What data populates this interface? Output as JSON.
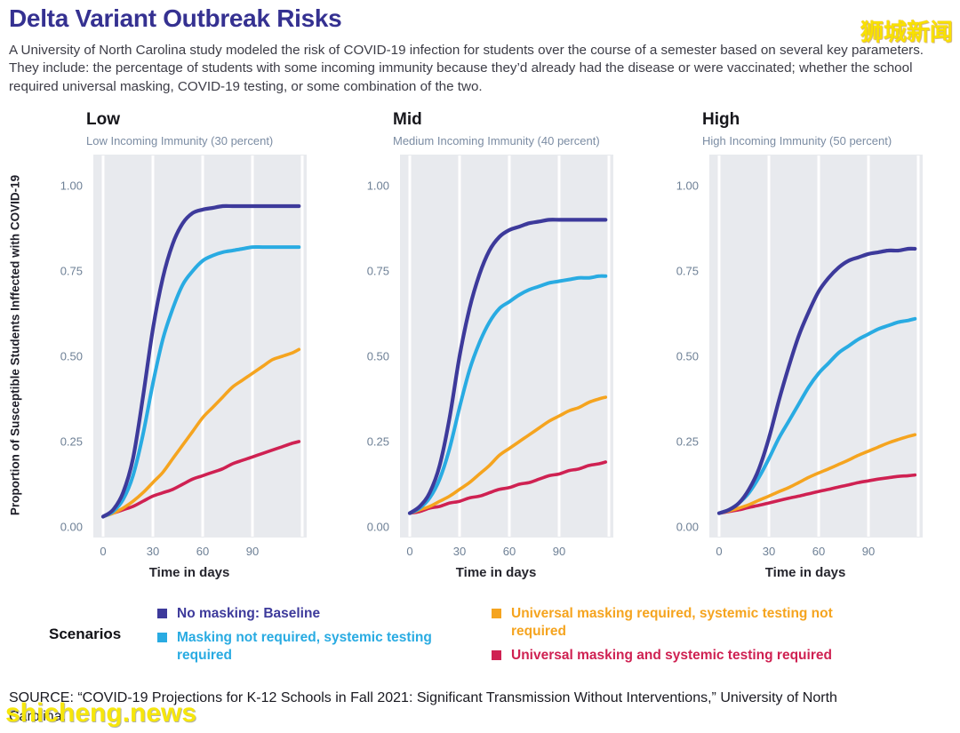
{
  "watermarks": {
    "top": "狮城新闻",
    "bottom": "shicheng.news"
  },
  "header": {
    "title": "Delta Variant Outbreak Risks",
    "description": "A University of North Carolina study modeled the risk of COVID-19 infection for students over the course of a semester based on several key parameters. They include: the percentage of students with some incoming immunity because they’d already had the disease or were vaccinated; whether the school required universal masking, COVID-19 testing, or some combination of the two."
  },
  "colors": {
    "title": "#353191",
    "navy": "#3d3a9b",
    "cyan": "#29abe2",
    "orange": "#f5a41f",
    "red": "#cf2152",
    "plot_bg": "#e8eaee",
    "grid": "#ffffff",
    "tick": "#6e8096",
    "subtitle": "#7b8ca3",
    "watermark": "#f8e100"
  },
  "chart_data": {
    "type": "line",
    "ylabel": "Proportion of Susceptible Students Inffected with COVID-19",
    "xlabel": "Time in days",
    "x_ticks": [
      0,
      30,
      60,
      90
    ],
    "grid_days": [
      0,
      30,
      60,
      90,
      120
    ],
    "y_ticks": [
      "0.00",
      "0.25",
      "0.50",
      "0.75",
      "1.00"
    ],
    "y_tick_values": [
      0,
      0.25,
      0.5,
      0.75,
      1
    ],
    "xlim": [
      -6,
      123
    ],
    "ylim": [
      0,
      1
    ],
    "legend_position": "bottom",
    "grid": "vertical-only",
    "x": [
      0,
      6,
      12,
      18,
      24,
      30,
      36,
      42,
      48,
      54,
      60,
      66,
      72,
      78,
      84,
      90,
      96,
      102,
      108,
      114,
      118
    ],
    "panels": [
      {
        "heading": "Low",
        "subtitle": "Low Incoming Immunity (30 percent)",
        "series": [
          {
            "name": "No masking: Baseline",
            "color": "navy",
            "values": [
              0.03,
              0.05,
              0.1,
              0.2,
              0.38,
              0.58,
              0.73,
              0.83,
              0.89,
              0.92,
              0.93,
              0.935,
              0.94,
              0.94,
              0.94,
              0.94,
              0.94,
              0.94,
              0.94,
              0.94,
              0.94
            ]
          },
          {
            "name": "Masking not required, systemic testing required",
            "color": "cyan",
            "values": [
              0.03,
              0.045,
              0.08,
              0.15,
              0.27,
              0.42,
              0.55,
              0.64,
              0.71,
              0.75,
              0.78,
              0.795,
              0.805,
              0.81,
              0.815,
              0.82,
              0.82,
              0.82,
              0.82,
              0.82,
              0.82
            ]
          },
          {
            "name": "Universal masking required, systemic testing not required",
            "color": "orange",
            "values": [
              0.03,
              0.04,
              0.055,
              0.075,
              0.1,
              0.13,
              0.16,
              0.2,
              0.24,
              0.28,
              0.32,
              0.35,
              0.38,
              0.41,
              0.43,
              0.45,
              0.47,
              0.49,
              0.5,
              0.51,
              0.52
            ]
          },
          {
            "name": "Universal masking and systemic testing required",
            "color": "red",
            "values": [
              0.03,
              0.04,
              0.05,
              0.06,
              0.075,
              0.09,
              0.1,
              0.11,
              0.125,
              0.14,
              0.15,
              0.16,
              0.17,
              0.185,
              0.195,
              0.205,
              0.215,
              0.225,
              0.235,
              0.245,
              0.25
            ]
          }
        ]
      },
      {
        "heading": "Mid",
        "subtitle": "Medium Incoming Immunity (40 percent)",
        "series": [
          {
            "name": "No masking: Baseline",
            "color": "navy",
            "values": [
              0.04,
              0.06,
              0.1,
              0.18,
              0.32,
              0.5,
              0.64,
              0.74,
              0.81,
              0.85,
              0.87,
              0.88,
              0.89,
              0.895,
              0.9,
              0.9,
              0.9,
              0.9,
              0.9,
              0.9,
              0.9
            ]
          },
          {
            "name": "Masking not required, systemic testing required",
            "color": "cyan",
            "values": [
              0.04,
              0.055,
              0.085,
              0.14,
              0.23,
              0.35,
              0.46,
              0.54,
              0.6,
              0.64,
              0.66,
              0.68,
              0.695,
              0.705,
              0.715,
              0.72,
              0.725,
              0.73,
              0.73,
              0.735,
              0.735
            ]
          },
          {
            "name": "Universal masking required, systemic testing not required",
            "color": "orange",
            "values": [
              0.04,
              0.05,
              0.06,
              0.075,
              0.09,
              0.11,
              0.13,
              0.155,
              0.18,
              0.21,
              0.23,
              0.25,
              0.27,
              0.29,
              0.31,
              0.325,
              0.34,
              0.35,
              0.365,
              0.375,
              0.38
            ]
          },
          {
            "name": "Universal masking and systemic testing required",
            "color": "red",
            "values": [
              0.04,
              0.045,
              0.055,
              0.06,
              0.07,
              0.075,
              0.085,
              0.09,
              0.1,
              0.11,
              0.115,
              0.125,
              0.13,
              0.14,
              0.15,
              0.155,
              0.165,
              0.17,
              0.18,
              0.185,
              0.19
            ]
          }
        ]
      },
      {
        "heading": "High",
        "subtitle": "High Incoming Immunity (50 percent)",
        "series": [
          {
            "name": "No masking: Baseline",
            "color": "navy",
            "values": [
              0.04,
              0.05,
              0.07,
              0.11,
              0.17,
              0.26,
              0.37,
              0.47,
              0.56,
              0.63,
              0.69,
              0.73,
              0.76,
              0.78,
              0.79,
              0.8,
              0.805,
              0.81,
              0.81,
              0.815,
              0.815
            ]
          },
          {
            "name": "Masking not required, systemic testing required",
            "color": "cyan",
            "values": [
              0.04,
              0.05,
              0.07,
              0.1,
              0.145,
              0.2,
              0.26,
              0.31,
              0.36,
              0.41,
              0.45,
              0.48,
              0.51,
              0.53,
              0.55,
              0.565,
              0.58,
              0.59,
              0.6,
              0.605,
              0.61
            ]
          },
          {
            "name": "Universal masking required, systemic testing not required",
            "color": "orange",
            "values": [
              0.04,
              0.047,
              0.055,
              0.065,
              0.078,
              0.09,
              0.103,
              0.115,
              0.13,
              0.145,
              0.158,
              0.17,
              0.183,
              0.196,
              0.21,
              0.222,
              0.234,
              0.246,
              0.256,
              0.265,
              0.27
            ]
          },
          {
            "name": "Universal masking and systemic testing required",
            "color": "red",
            "values": [
              0.04,
              0.045,
              0.05,
              0.057,
              0.063,
              0.07,
              0.077,
              0.084,
              0.09,
              0.097,
              0.104,
              0.11,
              0.117,
              0.123,
              0.13,
              0.135,
              0.14,
              0.144,
              0.148,
              0.15,
              0.152
            ]
          }
        ]
      }
    ]
  },
  "legend": {
    "label": "Scenarios",
    "items": [
      {
        "label": "No masking: Baseline",
        "color_key": "navy"
      },
      {
        "label": "Masking not required, systemic testing required",
        "color_key": "cyan"
      },
      {
        "label": "Universal masking required, systemic testing not required",
        "color_key": "orange"
      },
      {
        "label": "Universal masking and systemic testing required",
        "color_key": "red"
      }
    ]
  },
  "source": "SOURCE: “COVID-19 Projections for K-12 Schools in Fall 2021: Significant Transmission Without Interventions,” University of North Carolina."
}
